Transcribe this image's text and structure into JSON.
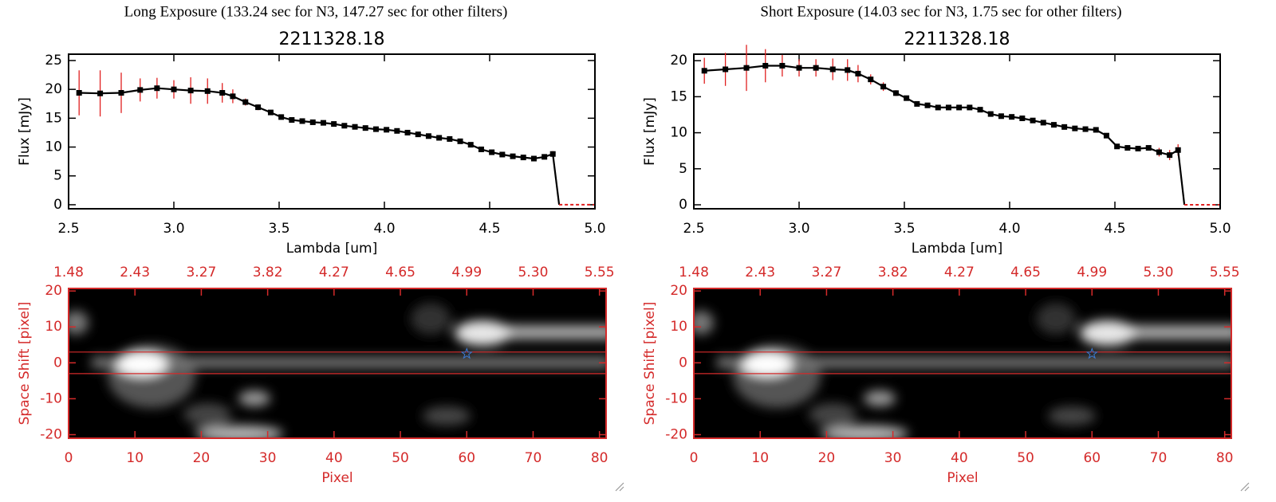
{
  "chart_data": [
    {
      "type": "line",
      "subtitle": "Long Exposure (133.24 sec for N3, 147.27 sec for other filters)",
      "title": "2211328.18",
      "xlabel": "Lambda [um]",
      "ylabel": "Flux [mJy]",
      "x": [
        2.55,
        2.65,
        2.75,
        2.84,
        2.92,
        3.0,
        3.08,
        3.16,
        3.23,
        3.28,
        3.34,
        3.4,
        3.46,
        3.51,
        3.56,
        3.61,
        3.66,
        3.71,
        3.76,
        3.81,
        3.86,
        3.91,
        3.96,
        4.01,
        4.06,
        4.11,
        4.16,
        4.21,
        4.26,
        4.31,
        4.36,
        4.41,
        4.46,
        4.51,
        4.56,
        4.61,
        4.66,
        4.71,
        4.76,
        4.8,
        4.83
      ],
      "values": [
        19.4,
        19.3,
        19.4,
        19.9,
        20.2,
        20.0,
        19.8,
        19.7,
        19.4,
        18.8,
        17.8,
        16.9,
        16.0,
        15.2,
        14.7,
        14.5,
        14.3,
        14.2,
        14.0,
        13.7,
        13.5,
        13.3,
        13.1,
        13.0,
        12.8,
        12.5,
        12.2,
        11.9,
        11.6,
        11.4,
        11.0,
        10.4,
        9.6,
        9.1,
        8.7,
        8.4,
        8.2,
        8.0,
        8.3,
        8.8,
        0
      ],
      "errors": [
        3.9,
        4.0,
        3.5,
        2.0,
        1.8,
        1.6,
        2.3,
        2.2,
        1.7,
        1.2,
        0.6,
        0.5,
        0.4,
        0.3,
        0.3,
        0.3,
        0.3,
        0.3,
        0.3,
        0.3,
        0.3,
        0.3,
        0.3,
        0.3,
        0.3,
        0.3,
        0.3,
        0.3,
        0.3,
        0.3,
        0.3,
        0.3,
        0.3,
        0.3,
        0.3,
        0.3,
        0.3,
        0.3,
        0.3,
        0.5,
        0
      ],
      "color": "#000000",
      "error_color": "#e02020",
      "xlim": [
        2.5,
        5.0
      ],
      "ylim": [
        -0.7,
        26.1
      ],
      "xticks": [
        2.5,
        {
          "value": 3,
          "label": "3.0"
        },
        3.5,
        {
          "value": 4,
          "label": "4.0"
        },
        4.5,
        {
          "value": 5,
          "label": "5.0"
        }
      ],
      "yticks": [
        0,
        5,
        10,
        15,
        20,
        25
      ]
    },
    {
      "type": "image",
      "xlabel": "Pixel",
      "ylabel": "Space Shift [pixel]",
      "xlim": [
        0,
        81
      ],
      "ylim": [
        -21,
        20.7
      ],
      "xticks": [
        0,
        10,
        20,
        30,
        40,
        50,
        60,
        70,
        80
      ],
      "yticks": [
        -20,
        -10,
        0,
        10,
        20
      ],
      "x2ticks": [
        {
          "value": 0,
          "label": "1.48"
        },
        {
          "value": 10,
          "label": "2.43"
        },
        {
          "value": 20,
          "label": "3.27"
        },
        {
          "value": 30,
          "label": "3.82"
        },
        {
          "value": 40,
          "label": "4.27"
        },
        {
          "value": 50,
          "label": "4.65"
        },
        {
          "value": 60,
          "label": "4.99"
        },
        {
          "value": 70,
          "label": "5.30"
        },
        {
          "value": 80,
          "label": "5.55"
        }
      ],
      "aperture": [
        -3,
        3
      ],
      "star": {
        "x": 60,
        "y": 2.5
      },
      "axis_color": "#d42a2a"
    },
    {
      "type": "line",
      "subtitle": "Short Exposure (14.03 sec for N3, 1.75 sec for other filters)",
      "title": "2211328.18",
      "xlabel": "Lambda [um]",
      "ylabel": "Flux [mJy]",
      "x": [
        2.55,
        2.65,
        2.75,
        2.84,
        2.92,
        3.0,
        3.08,
        3.16,
        3.23,
        3.28,
        3.34,
        3.4,
        3.46,
        3.51,
        3.56,
        3.61,
        3.66,
        3.71,
        3.76,
        3.81,
        3.86,
        3.91,
        3.96,
        4.01,
        4.06,
        4.11,
        4.16,
        4.21,
        4.26,
        4.31,
        4.36,
        4.41,
        4.46,
        4.51,
        4.56,
        4.61,
        4.66,
        4.71,
        4.76,
        4.8,
        4.83
      ],
      "values": [
        18.6,
        18.8,
        19.0,
        19.3,
        19.3,
        19.0,
        19.0,
        18.8,
        18.7,
        18.2,
        17.4,
        16.4,
        15.5,
        14.8,
        14.0,
        13.8,
        13.5,
        13.5,
        13.5,
        13.5,
        13.2,
        12.6,
        12.3,
        12.2,
        12.0,
        11.7,
        11.4,
        11.1,
        10.8,
        10.6,
        10.5,
        10.4,
        9.6,
        8.1,
        7.9,
        7.8,
        7.9,
        7.3,
        6.9,
        7.6,
        0
      ],
      "errors": [
        1.8,
        2.3,
        3.2,
        2.3,
        1.5,
        1.2,
        1.2,
        1.5,
        1.5,
        1.2,
        0.7,
        0.6,
        0.4,
        0.3,
        0.3,
        0.3,
        0.3,
        0.3,
        0.3,
        0.3,
        0.3,
        0.3,
        0.3,
        0.3,
        0.3,
        0.3,
        0.3,
        0.3,
        0.3,
        0.3,
        0.3,
        0.3,
        0.3,
        0.3,
        0.3,
        0.3,
        0.3,
        0.6,
        0.7,
        0.8,
        0
      ],
      "color": "#000000",
      "error_color": "#e02020",
      "xlim": [
        2.5,
        5.0
      ],
      "ylim": [
        -0.55,
        20.9
      ],
      "xticks": [
        2.5,
        {
          "value": 3,
          "label": "3.0"
        },
        3.5,
        {
          "value": 4,
          "label": "4.0"
        },
        4.5,
        {
          "value": 5,
          "label": "5.0"
        }
      ],
      "yticks": [
        0,
        5,
        10,
        15,
        20
      ]
    },
    {
      "type": "image",
      "xlabel": "Pixel",
      "ylabel": "Space Shift [pixel]",
      "xlim": [
        0,
        81
      ],
      "ylim": [
        -21,
        20.7
      ],
      "xticks": [
        0,
        10,
        20,
        30,
        40,
        50,
        60,
        70,
        80
      ],
      "yticks": [
        -20,
        -10,
        0,
        10,
        20
      ],
      "x2ticks": [
        {
          "value": 0,
          "label": "1.48"
        },
        {
          "value": 10,
          "label": "2.43"
        },
        {
          "value": 20,
          "label": "3.27"
        },
        {
          "value": 30,
          "label": "3.82"
        },
        {
          "value": 40,
          "label": "4.27"
        },
        {
          "value": 50,
          "label": "4.65"
        },
        {
          "value": 60,
          "label": "4.99"
        },
        {
          "value": 70,
          "label": "5.30"
        },
        {
          "value": 80,
          "label": "5.55"
        }
      ],
      "aperture": [
        -3,
        3
      ],
      "star": {
        "x": 60,
        "y": 2.5
      },
      "axis_color": "#d42a2a"
    }
  ]
}
